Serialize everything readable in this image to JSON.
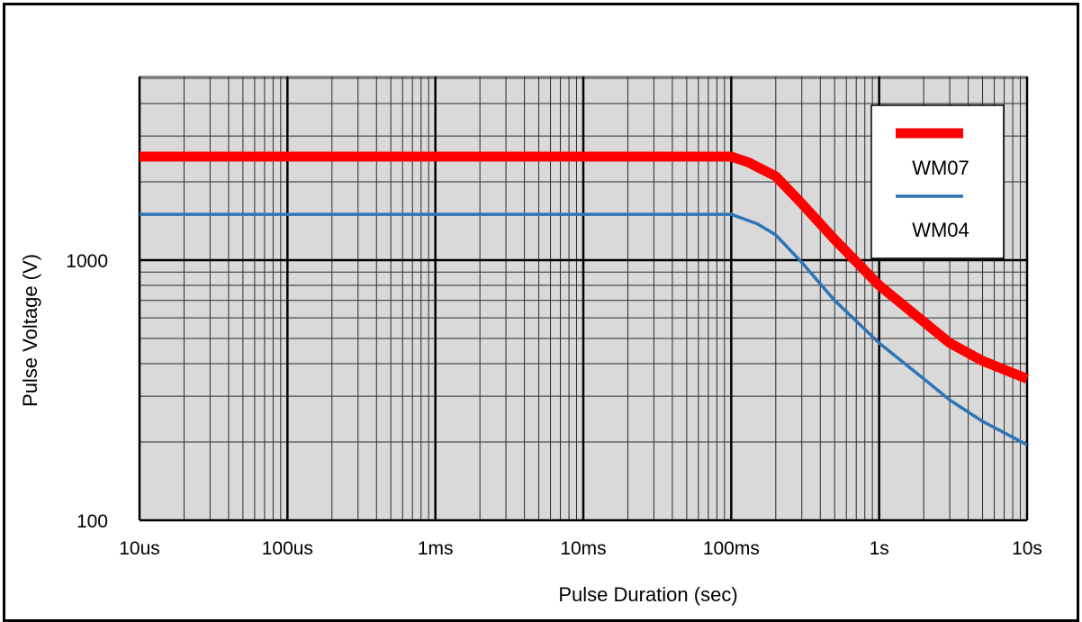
{
  "chart_data": {
    "type": "line",
    "x_scale": "log",
    "y_scale": "log",
    "xlabel": "Pulse Duration (sec)",
    "ylabel": "Pulse Voltage (V)",
    "xlim": [
      1e-05,
      10
    ],
    "ylim": [
      100,
      5000
    ],
    "grid": true,
    "legend_position": "top-right",
    "plot_background": "#d9d9d9",
    "x_ticks": [
      {
        "value": 1e-05,
        "label": "10us"
      },
      {
        "value": 0.0001,
        "label": "100us"
      },
      {
        "value": 0.001,
        "label": "1ms"
      },
      {
        "value": 0.01,
        "label": "10ms"
      },
      {
        "value": 0.1,
        "label": "100ms"
      },
      {
        "value": 1,
        "label": "1s"
      },
      {
        "value": 10,
        "label": "10s"
      }
    ],
    "y_ticks": [
      {
        "value": 100,
        "label": "100"
      },
      {
        "value": 1000,
        "label": "1000"
      }
    ],
    "series": [
      {
        "name": "WM07",
        "color": "#ff0000",
        "x": [
          1e-05,
          0.1,
          0.13,
          0.2,
          0.3,
          0.5,
          1,
          2,
          3,
          5,
          10
        ],
        "y": [
          2500,
          2500,
          2380,
          2100,
          1650,
          1200,
          800,
          580,
          480,
          410,
          350
        ]
      },
      {
        "name": "WM04",
        "color": "#2e75b6",
        "x": [
          1e-05,
          0.1,
          0.15,
          0.2,
          0.3,
          0.5,
          1,
          2,
          3,
          5,
          10
        ],
        "y": [
          1500,
          1500,
          1380,
          1250,
          980,
          700,
          480,
          350,
          290,
          240,
          195
        ]
      }
    ]
  }
}
